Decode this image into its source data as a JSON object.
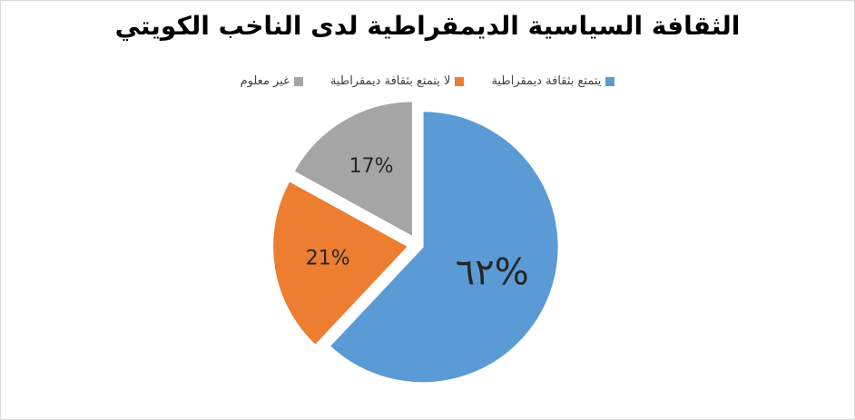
{
  "chart_data": {
    "type": "pie",
    "title": "الثقافة السياسية الديمقراطية لدى الناخب الكويتي",
    "legend_position": "top",
    "categories": [
      "يتمتع بثقافة ديمقراطية",
      "لا يتمتع بثقافة ديمقراطية",
      "غير معلوم"
    ],
    "values": [
      62,
      21,
      17
    ],
    "data_labels": [
      "٦٢%",
      "21%",
      "17%"
    ],
    "colors": [
      "#5b9bd5",
      "#ed7d31",
      "#a5a5a5"
    ]
  }
}
